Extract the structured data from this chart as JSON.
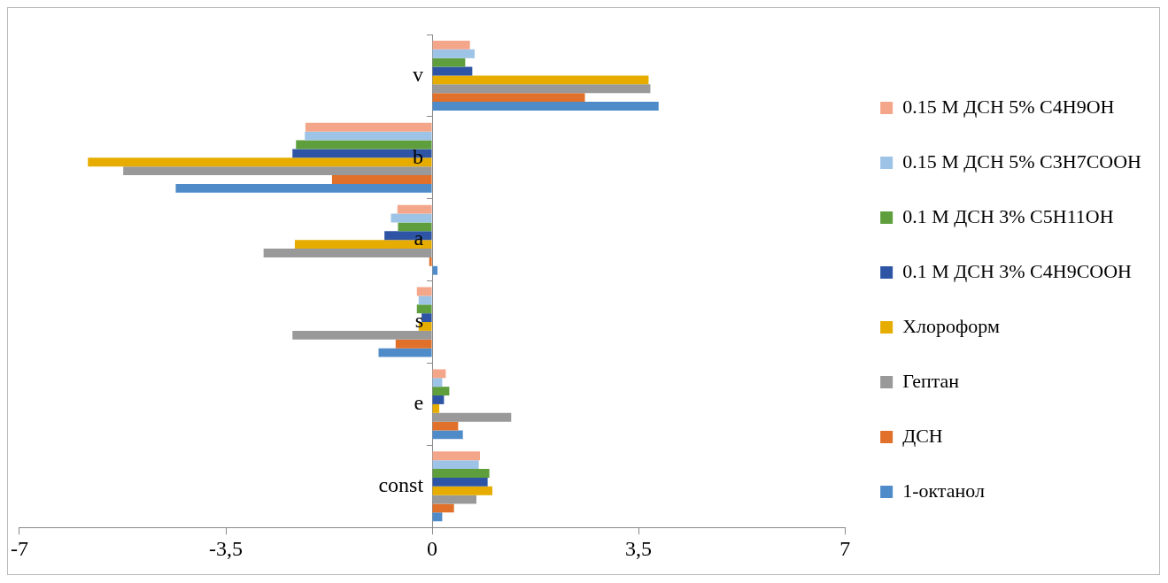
{
  "chart_data": {
    "type": "bar",
    "orientation": "horizontal",
    "categories": [
      "v",
      "b",
      "a",
      "s",
      "e",
      "const"
    ],
    "series": [
      {
        "name": "0.15 M ДСН 5% C4H9OH",
        "color": "#f4a68a",
        "values": [
          0.64,
          -2.15,
          -0.59,
          -0.26,
          0.23,
          0.81
        ]
      },
      {
        "name": "0.15 M ДСН 5% C3H7COOH",
        "color": "#9dc3e6",
        "values": [
          0.72,
          -2.16,
          -0.7,
          -0.23,
          0.17,
          0.79
        ]
      },
      {
        "name": "0.1 M ДСН 3% C5H11OH",
        "color": "#5e9e3c",
        "values": [
          0.56,
          -2.31,
          -0.58,
          -0.26,
          0.29,
          0.97
        ]
      },
      {
        "name": "0.1 M ДСН 3% C4H9COOH",
        "color": "#2e55a5",
        "values": [
          0.68,
          -2.37,
          -0.81,
          -0.18,
          0.2,
          0.94
        ]
      },
      {
        "name": "Хлороформ",
        "color": "#e6ad00",
        "values": [
          3.67,
          -5.84,
          -2.33,
          -0.23,
          0.12,
          1.02
        ]
      },
      {
        "name": "Гептан",
        "color": "#999999",
        "values": [
          3.7,
          -5.24,
          -2.86,
          -2.37,
          1.34,
          0.75
        ]
      },
      {
        "name": "ДСН",
        "color": "#e0702a",
        "values": [
          2.59,
          -1.7,
          -0.05,
          -0.62,
          0.44,
          0.37
        ]
      },
      {
        "name": "1-октанол",
        "color": "#4f8bc9",
        "values": [
          3.84,
          -4.35,
          0.09,
          -0.91,
          0.52,
          0.17
        ]
      }
    ],
    "xlim": [
      -7,
      7
    ],
    "xticks": [
      -7,
      {
        "value": -3.5,
        "label": "-3,5"
      },
      0,
      {
        "value": 3.5,
        "label": "3,5"
      },
      7
    ],
    "grid": false,
    "legend": "right"
  }
}
